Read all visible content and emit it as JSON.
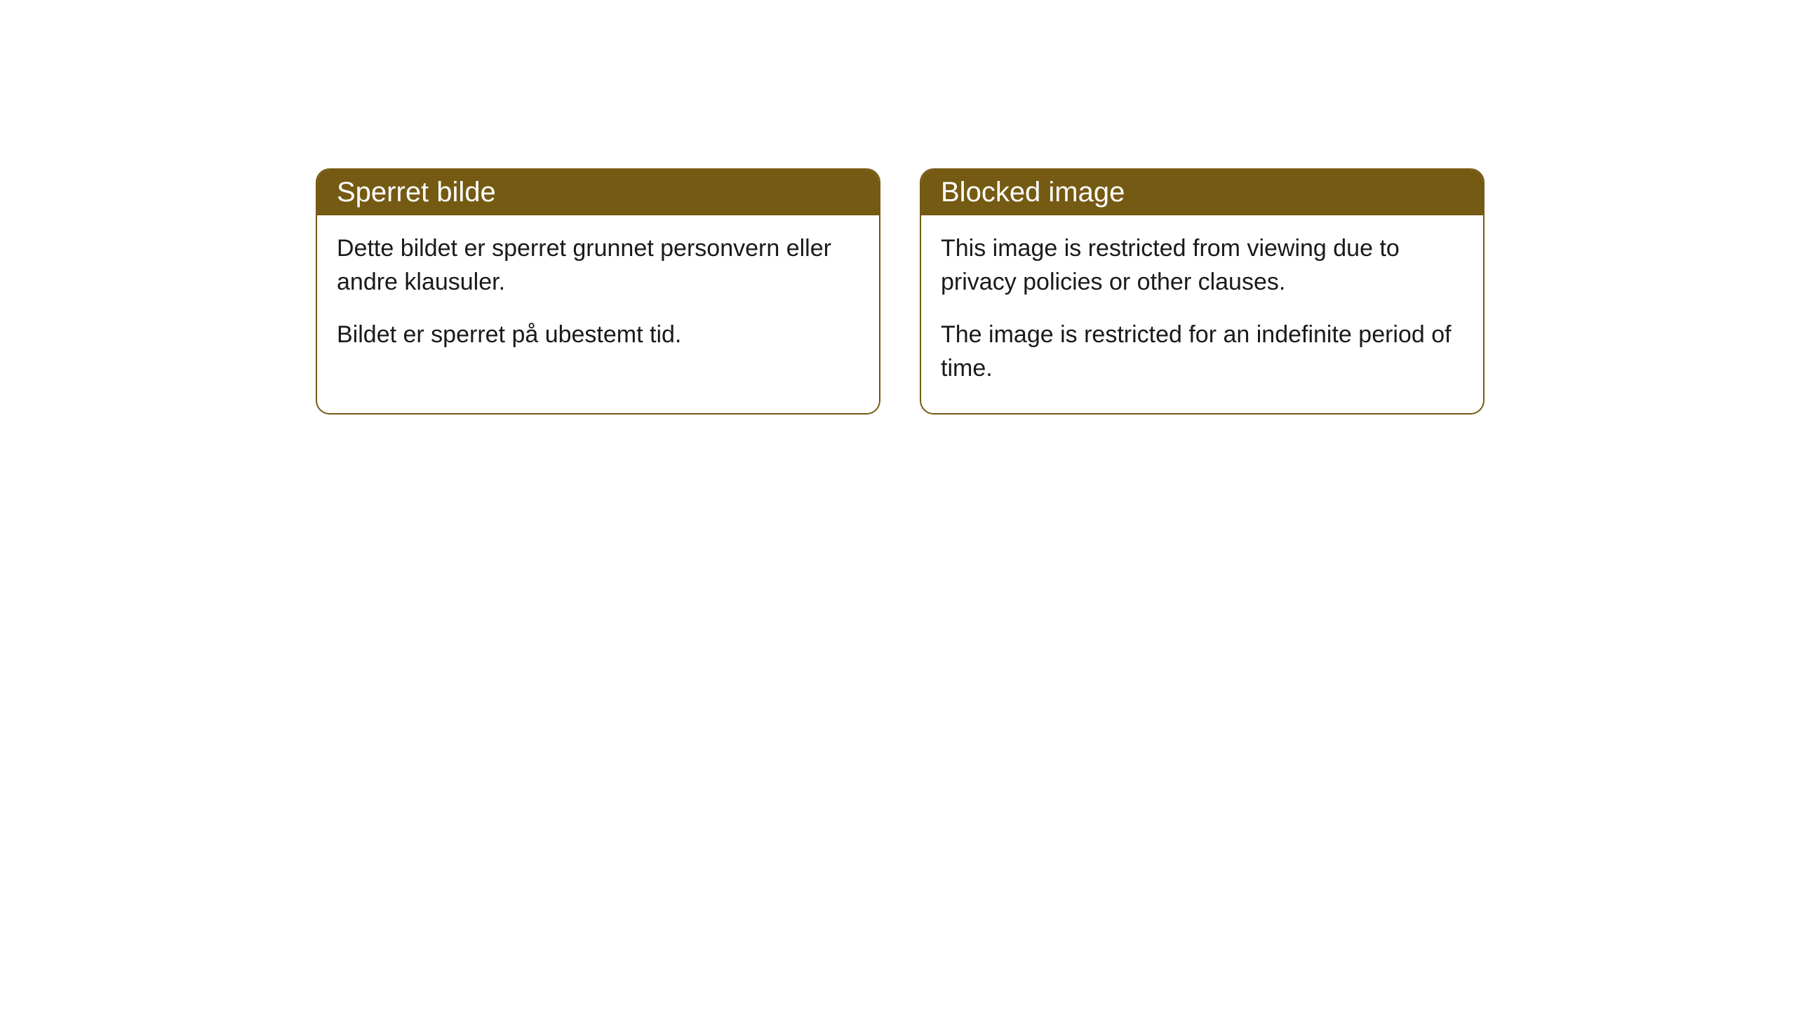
{
  "cards": [
    {
      "title": "Sperret bilde",
      "paragraph1": "Dette bildet er sperret grunnet personvern eller andre klausuler.",
      "paragraph2": "Bildet er sperret på ubestemt tid."
    },
    {
      "title": "Blocked image",
      "paragraph1": "This image is restricted from viewing due to privacy policies or other clauses.",
      "paragraph2": "The image is restricted for an indefinite period of time."
    }
  ],
  "styling": {
    "header_bg_color": "#755a13",
    "header_text_color": "#ffffff",
    "border_color": "#755a13",
    "body_bg_color": "#ffffff",
    "body_text_color": "#1a1a1a",
    "border_radius": "20px",
    "header_font_size": 40,
    "body_font_size": 34
  }
}
